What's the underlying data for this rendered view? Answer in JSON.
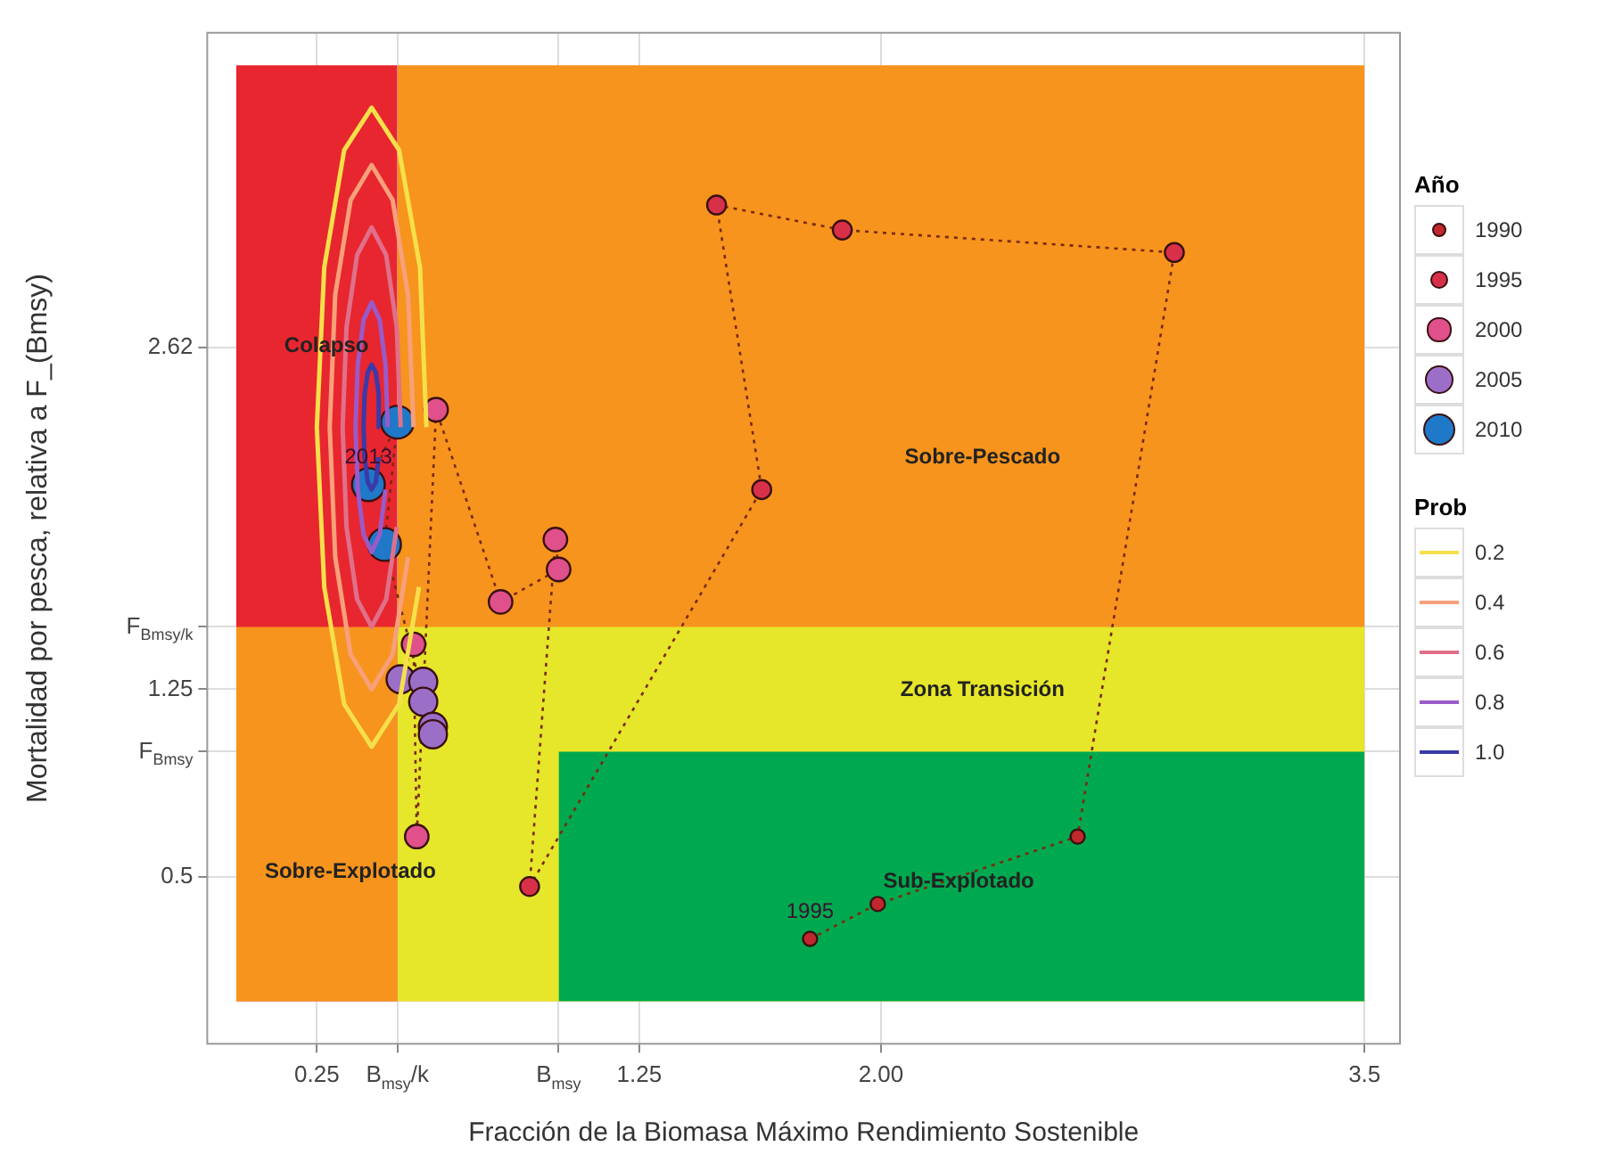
{
  "chart_data": {
    "type": "scatter",
    "xlabel": "Fracción de la Biomasa Máximo Rendimiento Sostenible",
    "ylabel": "Mortalidad por pesca, relativa a F_(Bmsy)",
    "legend_title": "Año",
    "legend": "right",
    "grid": true,
    "xlim": [
      -0.09,
      3.61
    ],
    "ylim": [
      -0.17,
      3.88
    ],
    "xticks": [
      0.25,
      {
        "value": 0.5,
        "label": "B$_{msy}$/k"
      },
      {
        "value": 1,
        "label": "B$_{msy}$"
      },
      1.25,
      {
        "value": 2,
        "label": "2.00"
      },
      3.5
    ],
    "yticks": [
      0.5,
      {
        "value": 1,
        "label": "F$_{Bmsy}$"
      },
      1.25,
      {
        "value": 1.5,
        "label": "F$_{Bmsy/k}$"
      },
      2.62
    ],
    "series": [
      {
        "type": "area",
        "color": "#00a94f",
        "x": [
          1,
          3.5
        ],
        "values": [
          1,
          1
        ]
      },
      {
        "type": "area",
        "color": "#e6e62a",
        "x": [
          0.5,
          3.5
        ],
        "values": [
          1.5,
          1.5
        ]
      },
      {
        "type": "area",
        "color": "#f7941d",
        "x": [
          0,
          0.5
        ],
        "values": [
          1.5,
          1.5
        ]
      },
      {
        "type": "area",
        "color": "#e8262f",
        "x": [
          0,
          0.5
        ],
        "values": [
          3.75,
          3.75
        ]
      },
      {
        "type": "area",
        "color": "#f7941d",
        "x": [
          0.5,
          3.5
        ],
        "values": [
          3.75,
          3.75
        ]
      },
      {
        "type": "line",
        "name": "0.2",
        "color": "#f5e04a",
        "x": [
          0.59,
          0.57,
          0.505,
          0.42,
          0.335,
          0.273,
          0.25,
          0.273,
          0.335,
          0.42,
          0.505,
          0.567
        ],
        "values": [
          2.3,
          2.94,
          3.41,
          3.58,
          3.41,
          2.94,
          2.3,
          1.66,
          1.19,
          1.02,
          1.19,
          1.66
        ]
      },
      {
        "type": "line",
        "name": "0.4",
        "color": "#f7a07a",
        "x": [
          0.55,
          0.533,
          0.485,
          0.42,
          0.355,
          0.307,
          0.29,
          0.307,
          0.355,
          0.42,
          0.485,
          0.533
        ],
        "values": [
          2.3,
          2.83,
          3.21,
          3.35,
          3.21,
          2.83,
          2.3,
          1.78,
          1.39,
          1.25,
          1.39,
          1.78
        ]
      },
      {
        "type": "line",
        "name": "0.6",
        "color": "#e0708a",
        "x": [
          0.51,
          0.498,
          0.465,
          0.42,
          0.375,
          0.342,
          0.33,
          0.342,
          0.375,
          0.42,
          0.465,
          0.498
        ],
        "values": [
          2.3,
          2.7,
          2.99,
          3.1,
          2.99,
          2.7,
          2.3,
          1.9,
          1.61,
          1.5,
          1.61,
          1.9
        ]
      },
      {
        "type": "line",
        "name": "0.8",
        "color": "#9a5ac8",
        "x": [
          0.47,
          0.463,
          0.445,
          0.42,
          0.395,
          0.377,
          0.37,
          0.377,
          0.395,
          0.42,
          0.445,
          0.463
        ],
        "values": [
          2.3,
          2.55,
          2.73,
          2.8,
          2.73,
          2.55,
          2.3,
          2.05,
          1.87,
          1.8,
          1.87,
          2.05
        ]
      },
      {
        "type": "line",
        "name": "1.0",
        "color": "#3a3aa8",
        "x": [
          0.445,
          0.442,
          0.433,
          0.42,
          0.408,
          0.398,
          0.395,
          0.398,
          0.408,
          0.42,
          0.433,
          0.442
        ],
        "values": [
          2.3,
          2.43,
          2.52,
          2.55,
          2.52,
          2.43,
          2.3,
          2.18,
          2.08,
          2.05,
          2.08,
          2.18
        ]
      },
      {
        "type": "line",
        "color": "#7a2a10",
        "line_style": "dotted",
        "x": [
          1.78,
          1.99,
          2.61,
          2.91,
          1.88,
          1.49,
          1.63,
          0.91,
          0.99,
          1.0,
          0.82,
          0.62,
          0.56,
          0.55,
          0.51,
          0.58,
          0.58,
          0.61,
          0.61,
          0.46,
          0.5,
          0.41
        ],
        "values": [
          0.25,
          0.39,
          0.66,
          3.0,
          3.09,
          3.19,
          2.05,
          0.46,
          1.85,
          1.73,
          1.6,
          2.37,
          0.66,
          1.43,
          1.29,
          1.28,
          1.2,
          1.1,
          1.07,
          1.83,
          2.32,
          2.07
        ]
      },
      {
        "type": "scatter",
        "marker": "circle",
        "name": "1990",
        "color": "#c0282d",
        "x": [
          1.78,
          1.99,
          2.61
        ],
        "values": [
          0.25,
          0.39,
          0.66
        ]
      },
      {
        "type": "scatter",
        "marker": "circle",
        "name": "1995",
        "color": "#d9304a",
        "x": [
          2.91,
          1.88,
          1.49,
          1.63,
          0.91
        ],
        "values": [
          3.0,
          3.09,
          3.19,
          2.05,
          0.46
        ]
      },
      {
        "type": "scatter",
        "marker": "circle",
        "name": "2000",
        "color": "#e0508a",
        "x": [
          0.99,
          1.0,
          0.82,
          0.62,
          0.56,
          0.55
        ],
        "values": [
          1.85,
          1.73,
          1.6,
          2.37,
          0.66,
          1.43
        ]
      },
      {
        "type": "scatter",
        "marker": "circle",
        "name": "2005",
        "color": "#9b6fc8",
        "x": [
          0.51,
          0.58,
          0.58,
          0.61,
          0.61
        ],
        "values": [
          1.29,
          1.28,
          1.2,
          1.1,
          1.07
        ]
      },
      {
        "type": "scatter",
        "marker": "circle",
        "name": "2010",
        "color": "#1f78c8",
        "x": [
          0.46,
          0.5,
          0.41
        ],
        "values": [
          1.83,
          2.32,
          2.07
        ]
      }
    ],
    "annotations": [
      "Prob",
      "Colapso",
      "Sobre-Pescado",
      "Zona Transición",
      "Sobre-Explotado",
      "Sub-Explotado",
      {
        "text": "1995",
        "x": 1.78,
        "y": 0.25
      },
      {
        "text": "2013",
        "x": 0.41,
        "y": 2.07
      }
    ]
  }
}
